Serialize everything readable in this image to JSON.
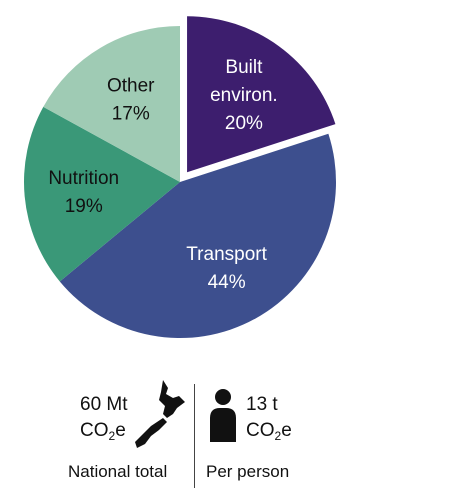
{
  "chart_data": {
    "type": "pie",
    "title": "",
    "slices": [
      {
        "label_lines": [
          "Built",
          "environ."
        ],
        "value": 20,
        "value_label": "20%",
        "color": "#3d1e6e",
        "exploded": true,
        "text_color": "#ffffff"
      },
      {
        "label_lines": [
          "Transport"
        ],
        "value": 44,
        "value_label": "44%",
        "color": "#3d4f8e",
        "exploded": false,
        "text_color": "#ffffff"
      },
      {
        "label_lines": [
          "Nutrition"
        ],
        "value": 19,
        "value_label": "19%",
        "color": "#3a9878",
        "exploded": false,
        "text_color": "#111111"
      },
      {
        "label_lines": [
          "Other"
        ],
        "value": 17,
        "value_label": "17%",
        "color": "#9fcbb4",
        "exploded": false,
        "text_color": "#111111"
      }
    ]
  },
  "summary": {
    "national": {
      "amount": "60 Mt",
      "unit_prefix": "CO",
      "unit_sub": "2",
      "unit_suffix": "e",
      "caption": "National total",
      "icon": "new-zealand-map-icon"
    },
    "per_person": {
      "amount": "13 t",
      "unit_prefix": "CO",
      "unit_sub": "2",
      "unit_suffix": "e",
      "caption": "Per person",
      "icon": "person-icon"
    }
  }
}
